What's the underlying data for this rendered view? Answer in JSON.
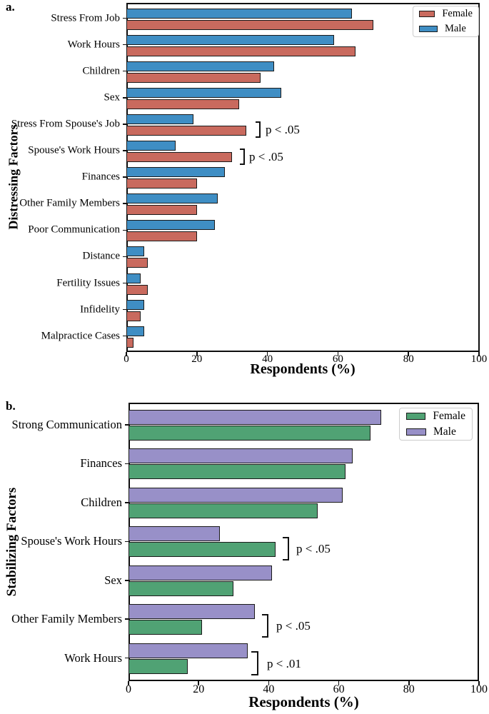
{
  "panel_a": {
    "panel_label": "a.",
    "y_axis_title": "Distressing Factors",
    "x_axis_title": "Respondents (%)",
    "legend": [
      {
        "label": "Female",
        "color": "#C96A5E"
      },
      {
        "label": "Male",
        "color": "#3F8EC4"
      }
    ]
  },
  "panel_b": {
    "panel_label": "b.",
    "y_axis_title": "Stabilizing Factors",
    "x_axis_title": "Respondents (%)",
    "legend": [
      {
        "label": "Female",
        "color": "#50A274"
      },
      {
        "label": "Male",
        "color": "#9890C8"
      }
    ]
  },
  "chart_data": [
    {
      "type": "bar",
      "orientation": "horizontal",
      "panel": "a",
      "title": "Distressing Factors",
      "xlabel": "Respondents (%)",
      "ylabel": "Distressing Factors",
      "xlim": [
        0,
        100
      ],
      "x_ticks": [
        0,
        20,
        40,
        60,
        80,
        100
      ],
      "grid": false,
      "legend_position": "top-right",
      "categories": [
        "Stress From Job",
        "Work Hours",
        "Children",
        "Sex",
        "Stress From Spouse's Job",
        "Spouse's Work Hours",
        "Finances",
        "Other Family Members",
        "Poor Communication",
        "Distance",
        "Fertility Issues",
        "Infidelity",
        "Malpractice Cases"
      ],
      "series": [
        {
          "name": "Male",
          "color": "#3F8EC4",
          "values": [
            64,
            59,
            42,
            44,
            19,
            14,
            28,
            26,
            25,
            5,
            4,
            5,
            5
          ]
        },
        {
          "name": "Female",
          "color": "#C96A5E",
          "values": [
            70,
            65,
            38,
            32,
            34,
            30,
            20,
            20,
            20,
            6,
            6,
            4,
            2
          ]
        }
      ],
      "annotations": [
        {
          "category": "Stress From Spouse's Job",
          "text": "p < .05"
        },
        {
          "category": "Spouse's Work Hours",
          "text": "p < .05"
        }
      ]
    },
    {
      "type": "bar",
      "orientation": "horizontal",
      "panel": "b",
      "title": "Stabilizing Factors",
      "xlabel": "Respondents (%)",
      "ylabel": "Stabilizing Factors",
      "xlim": [
        0,
        100
      ],
      "x_ticks": [
        0,
        20,
        40,
        60,
        80,
        100
      ],
      "grid": false,
      "legend_position": "top-right",
      "categories": [
        "Strong Communication",
        "Finances",
        "Children",
        "Spouse's Work Hours",
        "Sex",
        "Other Family Members",
        "Work Hours"
      ],
      "series": [
        {
          "name": "Male",
          "color": "#9890C8",
          "values": [
            72,
            64,
            61,
            26,
            41,
            36,
            34
          ]
        },
        {
          "name": "Female",
          "color": "#50A274",
          "values": [
            69,
            62,
            54,
            42,
            30,
            21,
            17
          ]
        }
      ],
      "annotations": [
        {
          "category": "Spouse's Work Hours",
          "text": "p < .05"
        },
        {
          "category": "Other Family Members",
          "text": "p < .05"
        },
        {
          "category": "Work Hours",
          "text": "p < .01"
        }
      ]
    }
  ]
}
